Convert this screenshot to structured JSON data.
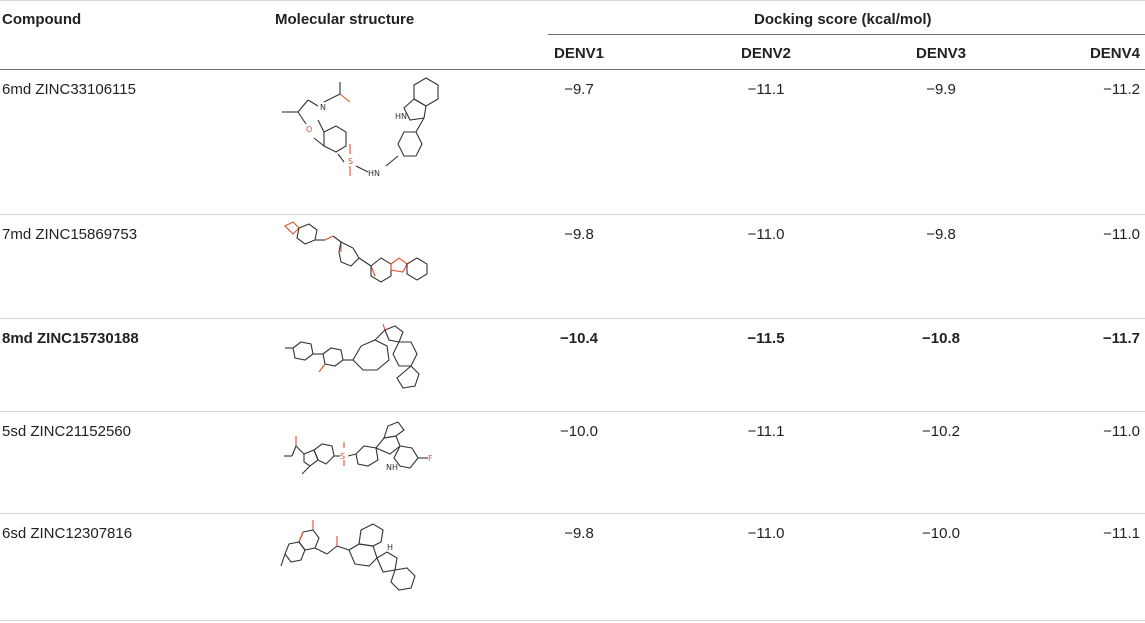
{
  "header": {
    "compound": "Compound",
    "structure": "Molecular structure",
    "docking_group": "Docking score (kcal/mol)",
    "columns": [
      "DENV1",
      "DENV2",
      "DENV3",
      "DENV4"
    ]
  },
  "rows": [
    {
      "compound": "6md ZINC33106115",
      "scores": [
        "−9.7",
        "−11.1",
        "−9.9",
        "−11.2"
      ],
      "bold": false
    },
    {
      "compound": "7md ZINC15869753",
      "scores": [
        "−9.8",
        "−11.0",
        "−9.8",
        "−11.0"
      ],
      "bold": false
    },
    {
      "compound": "8md ZINC15730188",
      "scores": [
        "−10.4",
        "−11.5",
        "−10.8",
        "−11.7"
      ],
      "bold": true
    },
    {
      "compound": "5sd ZINC21152560",
      "scores": [
        "−10.0",
        "−11.1",
        "−10.2",
        "−11.0"
      ],
      "bold": false
    },
    {
      "compound": "6sd ZINC12307816",
      "scores": [
        "−9.8",
        "−11.0",
        "−10.0",
        "−11.1"
      ],
      "bold": false
    }
  ],
  "structure_labels": {
    "hn": "HN",
    "nh": "NH",
    "h": "H",
    "n": "N",
    "o": "O",
    "s": "S",
    "f": "F"
  },
  "colors": {
    "oxygen": "#e0502a",
    "rule": "#d4d4d4",
    "header_rule": "#6e6e6e"
  }
}
